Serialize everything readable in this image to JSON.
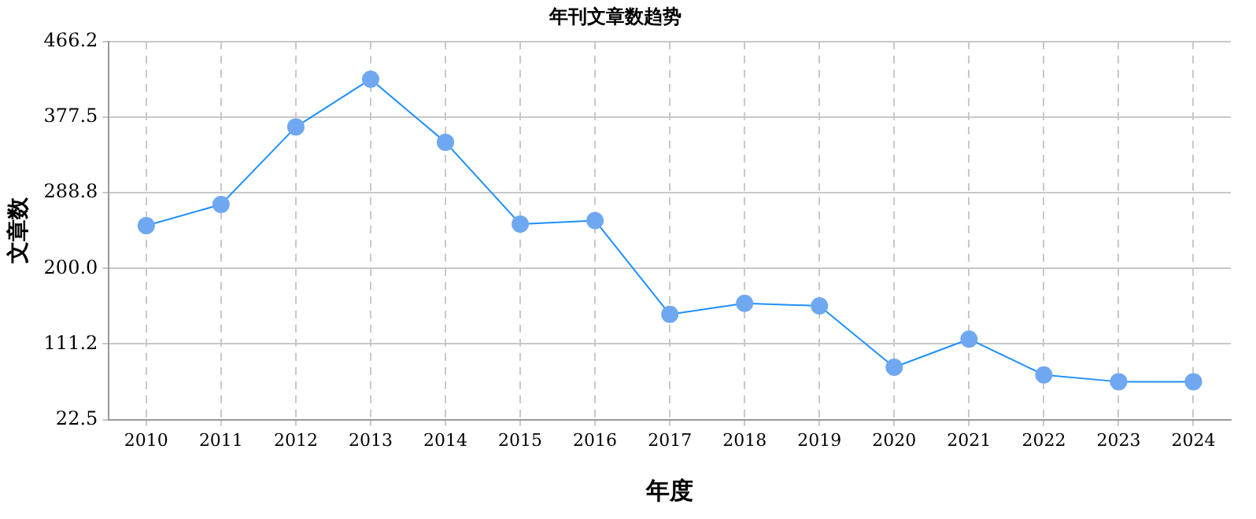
{
  "chart_data": {
    "type": "line",
    "title": "年刊文章数趋势",
    "xlabel": "年度",
    "ylabel": "文章数",
    "categories": [
      "2010",
      "2011",
      "2012",
      "2013",
      "2014",
      "2015",
      "2016",
      "2017",
      "2018",
      "2019",
      "2020",
      "2021",
      "2022",
      "2023",
      "2024"
    ],
    "series": [
      {
        "color": "#1e90ff",
        "values": [
          250,
          275,
          366,
          422,
          348,
          252,
          256,
          146,
          159,
          156,
          84,
          117,
          75,
          67,
          67
        ]
      }
    ],
    "ylim": [
      22.5,
      466.2
    ],
    "yticks": [
      22.5,
      111.2,
      {
        "value": 200,
        "label": "200.0"
      },
      288.8,
      377.5,
      466.2
    ],
    "grid": true,
    "legend": false,
    "marker": "circle",
    "line_style": "solid"
  }
}
